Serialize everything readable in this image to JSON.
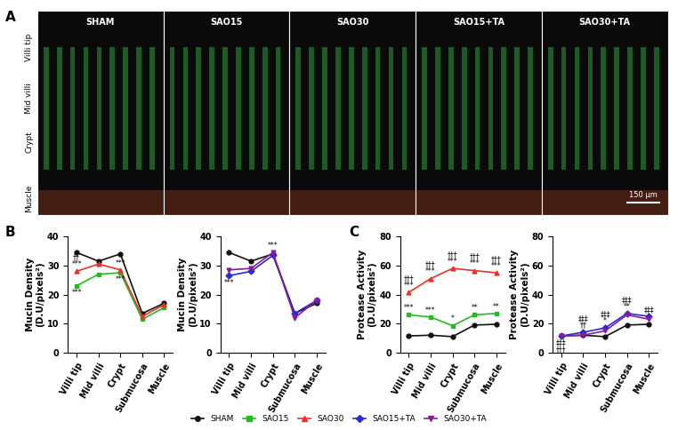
{
  "panel_labels": [
    "A",
    "B",
    "C"
  ],
  "micrographs": {
    "images": [
      "SHAM",
      "SAO15",
      "SAO30",
      "SAO15+TA",
      "SAO30+TA"
    ],
    "row_labels": [
      "Villi tip",
      "Mid villi",
      "Crypt",
      "Muscle"
    ],
    "scale_bar": "150 µm"
  },
  "legend": "lower center",
  "chart_data": [
    {
      "type": "line",
      "panel": "B",
      "ylabel": "Mucin Density\n(D.U/pixels²)",
      "categories": [
        "Villi tip",
        "Mid villi",
        "Crypt",
        "Submucosa",
        "Muscle"
      ],
      "ylim": [
        0,
        40
      ],
      "yticks": [
        0,
        10,
        20,
        30,
        40
      ],
      "series": [
        {
          "name": "SHAM",
          "color": "#111111",
          "marker": "circle",
          "values": [
            34.5,
            31.5,
            34,
            13.5,
            17
          ],
          "annotations": [
            null,
            null,
            null,
            null,
            null
          ]
        },
        {
          "name": "SAO15",
          "color": "#22bb22",
          "marker": "square",
          "values": [
            23,
            27,
            27.5,
            11.5,
            15.5
          ],
          "annotations": [
            "***",
            null,
            "***",
            null,
            null
          ]
        },
        {
          "name": "SAO30",
          "color": "#e8332a",
          "marker": "triangle_up",
          "values": [
            28,
            30.5,
            28.5,
            12.5,
            16.5
          ],
          "annotations": [
            "††\n***",
            null,
            "***",
            null,
            null
          ]
        }
      ]
    },
    {
      "type": "line",
      "panel": "B",
      "ylabel": "Mucin Density\n(D.U/pixels²)",
      "categories": [
        "Villi tip",
        "Mid villi",
        "Crypt",
        "Submucosa",
        "Muscle"
      ],
      "ylim": [
        0,
        40
      ],
      "yticks": [
        0,
        10,
        20,
        30,
        40
      ],
      "series": [
        {
          "name": "SHAM",
          "color": "#111111",
          "marker": "circle",
          "values": [
            34.5,
            31.5,
            34,
            13.5,
            17
          ],
          "annotations": [
            null,
            null,
            null,
            null,
            null
          ]
        },
        {
          "name": "SAO15+TA",
          "color": "#2a2ad0",
          "marker": "diamond",
          "values": [
            26.5,
            28,
            33.5,
            13.5,
            18
          ],
          "annotations": [
            "***",
            null,
            null,
            null,
            null
          ]
        },
        {
          "name": "SAO30+TA",
          "color": "#8b1a9e",
          "marker": "triangle_down",
          "values": [
            28.5,
            29,
            34.5,
            12,
            18
          ],
          "annotations": [
            null,
            null,
            "***",
            null,
            null
          ]
        }
      ]
    },
    {
      "type": "line",
      "panel": "C",
      "ylabel": "Protease Activity\n(D.U/pixels²)",
      "categories": [
        "Villi tip",
        "Mid villi",
        "Crypt",
        "Submucosa",
        "Muscle"
      ],
      "ylim": [
        0,
        80
      ],
      "yticks": [
        0,
        20,
        40,
        60,
        80
      ],
      "series": [
        {
          "name": "SHAM",
          "color": "#111111",
          "marker": "circle",
          "values": [
            11.5,
            12,
            11,
            19,
            19.5
          ],
          "annotations": [
            null,
            null,
            null,
            null,
            null
          ]
        },
        {
          "name": "SAO15",
          "color": "#22bb22",
          "marker": "square",
          "values": [
            26,
            24.5,
            18.5,
            26,
            27
          ],
          "annotations": [
            "***",
            "***",
            "*",
            "**",
            "**"
          ]
        },
        {
          "name": "SAO30",
          "color": "#e8332a",
          "marker": "triangle_up",
          "values": [
            41.5,
            51,
            58,
            56.5,
            55
          ],
          "annotations": [
            "†††\n***",
            "†††\n***",
            "†††\n***",
            "†††\n***",
            "†††\n***"
          ]
        }
      ]
    },
    {
      "type": "line",
      "panel": "C",
      "ylabel": "Protease Activity\n(D.U/pixels²)",
      "categories": [
        "Villi tip",
        "Mid villi",
        "Crypt",
        "Submucosa",
        "Muscle"
      ],
      "ylim": [
        0,
        80
      ],
      "yticks": [
        0,
        20,
        40,
        60,
        80
      ],
      "series": [
        {
          "name": "SHAM",
          "color": "#111111",
          "marker": "circle",
          "values": [
            11.5,
            12,
            11,
            19,
            19.5
          ],
          "annotations": [
            null,
            null,
            null,
            null,
            null
          ]
        },
        {
          "name": "SAO15+TA",
          "color": "#2a2ad0",
          "marker": "diamond",
          "values": [
            11.5,
            14,
            17,
            27,
            25
          ],
          "annotations": [
            "‡‡‡\n†††",
            "‡‡‡\n††",
            "‡‡‡\n*",
            "‡‡‡\n**",
            "‡‡‡"
          ]
        },
        {
          "name": "SAO30+TA",
          "color": "#8b1a9e",
          "marker": "triangle_down",
          "values": [
            11.5,
            12,
            15,
            26,
            23
          ],
          "annotations": [
            null,
            null,
            null,
            null,
            null
          ]
        }
      ]
    }
  ]
}
